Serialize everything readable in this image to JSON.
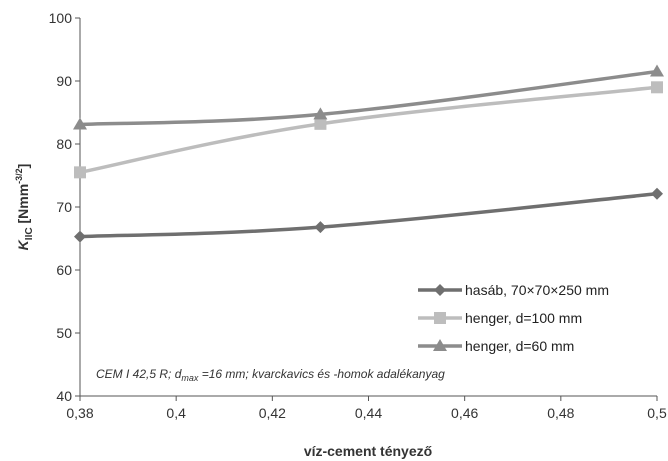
{
  "chart_data": {
    "type": "line",
    "x": [
      0.38,
      0.43,
      0.5
    ],
    "series": [
      {
        "name": "hasáb, 70×70×250 mm",
        "values": [
          65.3,
          66.8,
          72.1
        ],
        "color": "#6f6f6f",
        "marker": "diamond"
      },
      {
        "name": "henger, d=100 mm",
        "values": [
          75.5,
          83.2,
          89.0
        ],
        "color": "#bdbdbd",
        "marker": "square"
      },
      {
        "name": "henger, d=60 mm",
        "values": [
          83.1,
          84.7,
          91.5
        ],
        "color": "#8c8c8c",
        "marker": "triangle"
      }
    ],
    "xlim": [
      0.38,
      0.5
    ],
    "ylim": [
      40,
      100
    ],
    "xticks": [
      "0,38",
      "0,4",
      "0,42",
      "0,44",
      "0,46",
      "0,48",
      "0,5"
    ],
    "yticks": [
      "40",
      "50",
      "60",
      "70",
      "80",
      "90",
      "100"
    ],
    "xlabel": "víz-cement tényező",
    "ylabel": {
      "main": "K",
      "sub": "IIC",
      "unit_prefix": " [Nmm",
      "unit_sup": "-3/2",
      "unit_suffix": "]"
    },
    "note": {
      "part1": "CEM I 42,5 R; d",
      "sub": "max",
      "part2": " =16 mm; kvarckavics és -homok adalékanyag"
    },
    "grid": false,
    "legend_position": "bottom-right"
  }
}
